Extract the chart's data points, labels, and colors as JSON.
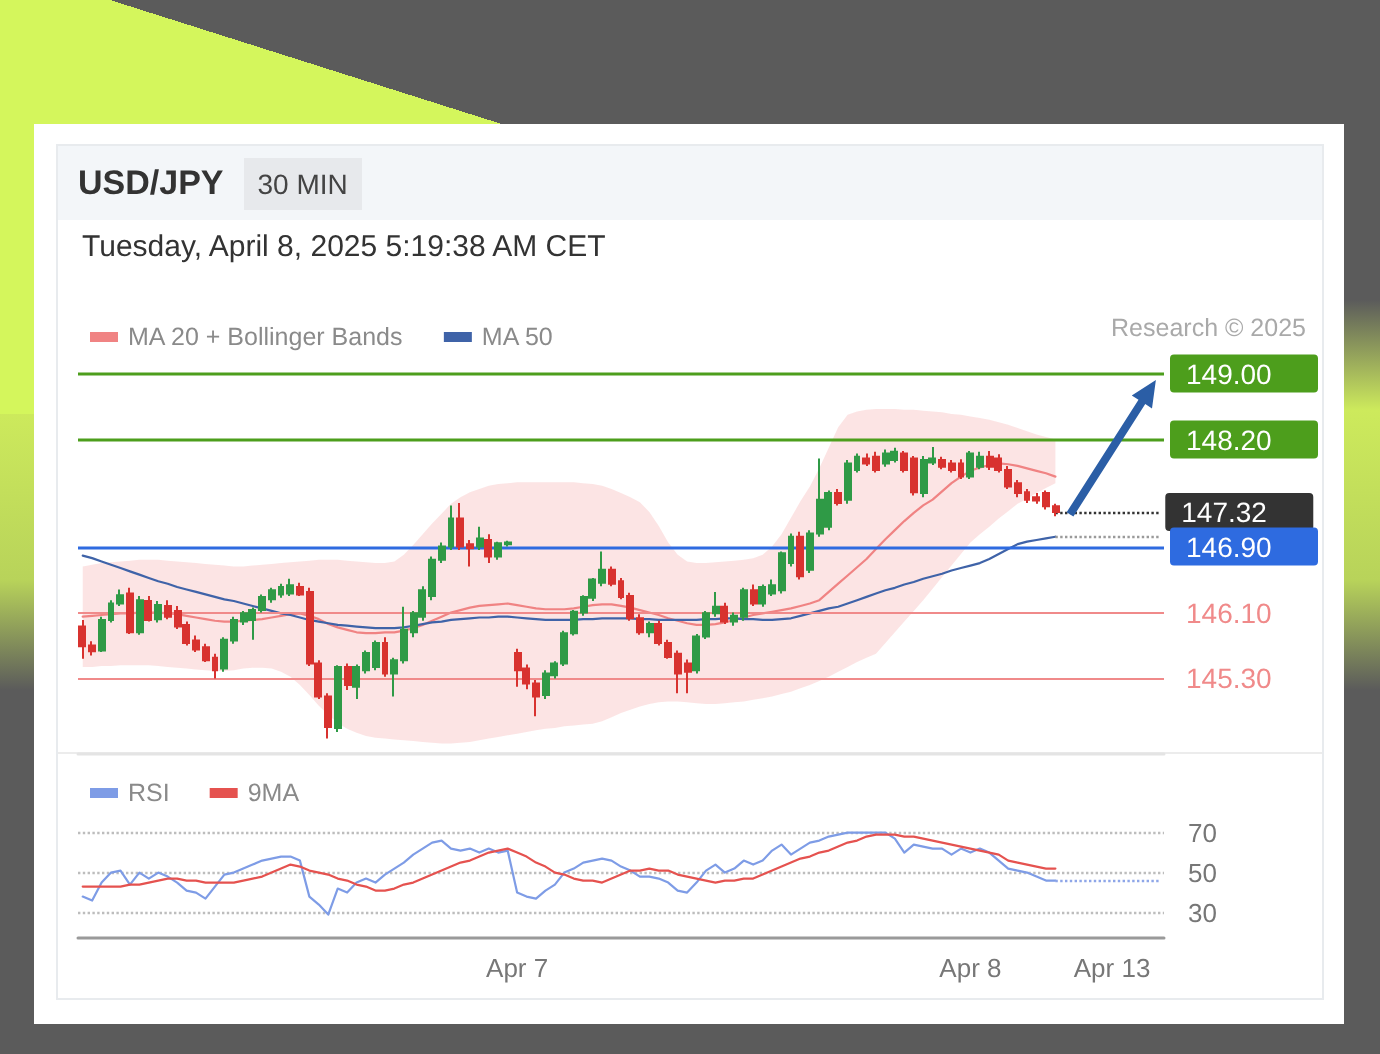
{
  "chart_data": [
    {
      "type": "candlestick",
      "title": "USD/JPY",
      "subtitle": "Tuesday, April 8, 2025 5:19:38 AM CET",
      "annotations": [
        "30 MIN",
        "Research © 2025"
      ],
      "categories": [
        null,
        null,
        null,
        null,
        null,
        null,
        null,
        null,
        null,
        null,
        null,
        null,
        null,
        null,
        null,
        null,
        null,
        null,
        null,
        null,
        null,
        null,
        null,
        null,
        null,
        null,
        null,
        null,
        null,
        null,
        null,
        null,
        null,
        null,
        null,
        null,
        null,
        null,
        null,
        null,
        null,
        null,
        null,
        null,
        null,
        null,
        "Apr 7",
        null,
        null,
        null,
        null,
        null,
        null,
        null,
        null,
        null,
        null,
        null,
        null,
        null,
        null,
        null,
        null,
        null,
        null,
        null,
        null,
        null,
        null,
        null,
        null,
        null,
        null,
        null,
        null,
        null,
        null,
        null,
        null,
        null,
        null,
        null,
        null,
        null,
        null,
        null,
        null,
        null,
        null,
        null,
        null,
        null,
        null,
        null,
        "Apr 8",
        null,
        null,
        null,
        null,
        null,
        null,
        null,
        null,
        null,
        null,
        null,
        null,
        null,
        null,
        "Apr 13",
        null,
        null,
        null,
        null,
        null
      ],
      "ohlc": [
        [
          145.93,
          146.01,
          145.54,
          145.69
        ],
        [
          145.7,
          145.75,
          145.58,
          145.63
        ],
        [
          145.64,
          146.05,
          145.62,
          146.01
        ],
        [
          146.01,
          146.25,
          145.98,
          146.21
        ],
        [
          146.21,
          146.38,
          146.18,
          146.31
        ],
        [
          146.33,
          146.4,
          145.84,
          145.86
        ],
        [
          145.86,
          146.3,
          145.83,
          146.25
        ],
        [
          146.24,
          146.3,
          145.99,
          146.01
        ],
        [
          146.02,
          146.24,
          145.98,
          146.19
        ],
        [
          146.18,
          146.25,
          146.02,
          146.05
        ],
        [
          146.12,
          146.18,
          145.9,
          145.93
        ],
        [
          145.95,
          145.99,
          145.7,
          145.73
        ],
        [
          145.76,
          145.82,
          145.62,
          145.65
        ],
        [
          145.68,
          145.72,
          145.5,
          145.52
        ],
        [
          145.55,
          145.6,
          145.3,
          145.4
        ],
        [
          145.42,
          145.8,
          145.38,
          145.77
        ],
        [
          145.76,
          146.05,
          145.72,
          146.01
        ],
        [
          145.99,
          146.12,
          145.95,
          146.09
        ],
        [
          146.01,
          146.16,
          145.77,
          146.13
        ],
        [
          146.13,
          146.32,
          146.1,
          146.29
        ],
        [
          146.26,
          146.4,
          146.22,
          146.37
        ],
        [
          146.32,
          146.45,
          146.28,
          146.41
        ],
        [
          146.33,
          146.51,
          146.3,
          146.43
        ],
        [
          146.41,
          146.46,
          146.3,
          146.32
        ],
        [
          146.35,
          146.4,
          145.45,
          145.48
        ],
        [
          145.48,
          145.52,
          145.05,
          145.08
        ],
        [
          145.08,
          145.12,
          144.57,
          144.71
        ],
        [
          144.7,
          145.46,
          144.65,
          145.44
        ],
        [
          145.44,
          145.48,
          145.16,
          145.22
        ],
        [
          145.2,
          145.47,
          145.05,
          145.44
        ],
        [
          145.4,
          145.64,
          145.36,
          145.61
        ],
        [
          145.44,
          145.76,
          145.4,
          145.73
        ],
        [
          145.73,
          145.8,
          145.32,
          145.36
        ],
        [
          145.36,
          145.55,
          145.08,
          145.52
        ],
        [
          145.52,
          146.17,
          145.48,
          145.89
        ],
        [
          145.86,
          146.12,
          145.8,
          146.09
        ],
        [
          146.05,
          146.42,
          146.0,
          146.37
        ],
        [
          146.3,
          146.78,
          146.25,
          146.74
        ],
        [
          146.74,
          146.95,
          146.7,
          146.9
        ],
        [
          146.9,
          147.4,
          146.86,
          147.24
        ],
        [
          147.24,
          147.43,
          146.86,
          146.9
        ],
        [
          146.93,
          146.98,
          146.66,
          146.88
        ],
        [
          146.9,
          147.14,
          146.86,
          147.0
        ],
        [
          146.98,
          147.05,
          146.7,
          146.78
        ],
        [
          146.78,
          146.96,
          146.74,
          146.94
        ],
        [
          146.93,
          146.97,
          146.9,
          146.95
        ],
        [
          145.61,
          145.66,
          145.2,
          145.4
        ],
        [
          145.42,
          145.47,
          145.17,
          145.24
        ],
        [
          145.24,
          145.28,
          144.84,
          145.08
        ],
        [
          145.1,
          145.4,
          145.05,
          145.36
        ],
        [
          145.34,
          145.51,
          145.3,
          145.48
        ],
        [
          145.48,
          145.88,
          145.45,
          145.85
        ],
        [
          145.85,
          146.13,
          145.82,
          146.11
        ],
        [
          146.1,
          146.31,
          146.06,
          146.29
        ],
        [
          146.28,
          146.52,
          146.24,
          146.5
        ],
        [
          146.46,
          146.84,
          146.42,
          146.62
        ],
        [
          146.62,
          146.66,
          146.42,
          146.45
        ],
        [
          146.48,
          146.52,
          146.26,
          146.29
        ],
        [
          146.3,
          146.34,
          146.0,
          146.03
        ],
        [
          146.03,
          146.08,
          145.83,
          145.86
        ],
        [
          145.86,
          145.99,
          145.8,
          145.96
        ],
        [
          145.96,
          146.0,
          145.7,
          145.73
        ],
        [
          145.73,
          145.77,
          145.54,
          145.56
        ],
        [
          145.6,
          145.64,
          145.12,
          145.36
        ],
        [
          145.48,
          145.53,
          145.12,
          145.38
        ],
        [
          145.4,
          145.84,
          145.36,
          145.81
        ],
        [
          145.81,
          146.12,
          145.78,
          146.09
        ],
        [
          146.09,
          146.35,
          146.05,
          146.17
        ],
        [
          146.17,
          146.22,
          145.96,
          145.99
        ],
        [
          145.99,
          146.1,
          145.94,
          146.06
        ],
        [
          146.05,
          146.4,
          146.0,
          146.37
        ],
        [
          146.37,
          146.44,
          146.18,
          146.21
        ],
        [
          146.21,
          146.44,
          146.17,
          146.41
        ],
        [
          146.33,
          146.5,
          146.3,
          146.43
        ],
        [
          146.37,
          146.84,
          146.33,
          146.82
        ],
        [
          146.7,
          147.06,
          146.66,
          147.02
        ],
        [
          147.02,
          147.08,
          146.5,
          146.54
        ],
        [
          146.62,
          147.1,
          146.58,
          147.06
        ],
        [
          147.06,
          147.97,
          147.02,
          147.47
        ],
        [
          147.14,
          147.58,
          147.1,
          147.55
        ],
        [
          147.55,
          147.6,
          147.4,
          147.43
        ],
        [
          147.47,
          147.95,
          147.42,
          147.91
        ],
        [
          147.83,
          148.03,
          147.8,
          147.99
        ],
        [
          147.97,
          148.03,
          147.88,
          147.91
        ],
        [
          147.99,
          148.05,
          147.8,
          147.83
        ],
        [
          147.91,
          148.08,
          147.87,
          148.03
        ],
        [
          147.95,
          148.1,
          147.92,
          148.05
        ],
        [
          148.03,
          148.06,
          147.8,
          147.83
        ],
        [
          147.97,
          148.0,
          147.52,
          147.56
        ],
        [
          147.55,
          148.0,
          147.5,
          147.95
        ],
        [
          147.92,
          148.11,
          147.89,
          147.97
        ],
        [
          147.95,
          147.99,
          147.84,
          147.87
        ],
        [
          147.91,
          147.95,
          147.8,
          147.83
        ],
        [
          147.91,
          147.96,
          147.72,
          147.75
        ],
        [
          147.75,
          148.06,
          147.72,
          148.03
        ],
        [
          147.87,
          148.05,
          147.84,
          147.99
        ],
        [
          147.99,
          148.06,
          147.83,
          147.87
        ],
        [
          147.97,
          148.02,
          147.8,
          147.83
        ],
        [
          147.83,
          147.88,
          147.6,
          147.63
        ],
        [
          147.67,
          147.71,
          147.5,
          147.55
        ],
        [
          147.56,
          147.6,
          147.43,
          147.47
        ],
        [
          147.5,
          147.55,
          147.42,
          147.46
        ],
        [
          147.55,
          147.58,
          147.35,
          147.39
        ],
        [
          147.39,
          147.42,
          147.27,
          147.32
        ],
        null,
        null,
        null,
        null,
        null,
        null,
        null,
        null,
        null,
        null,
        null
      ],
      "colors": [
        "#d8322f",
        "#d8322f",
        "#2f9a46",
        "#2f9a46",
        "#2f9a46",
        "#d8322f",
        "#2f9a46",
        "#d8322f",
        "#2f9a46",
        "#d8322f",
        "#d8322f",
        "#d8322f",
        "#d8322f",
        "#d8322f",
        "#d8322f",
        "#2f9a46",
        "#2f9a46",
        "#2f9a46",
        "#2f9a46",
        "#2f9a46",
        "#2f9a46",
        "#2f9a46",
        "#2f9a46",
        "#d8322f",
        "#d8322f",
        "#d8322f",
        "#d8322f",
        "#2f9a46",
        "#d8322f",
        "#2f9a46",
        "#2f9a46",
        "#2f9a46",
        "#d8322f",
        "#2f9a46",
        "#2f9a46",
        "#2f9a46",
        "#2f9a46",
        "#2f9a46",
        "#2f9a46",
        "#2f9a46",
        "#d8322f",
        "#d8322f",
        "#2f9a46",
        "#d8322f",
        "#2f9a46",
        "#2f9a46",
        "#d8322f",
        "#d8322f",
        "#d8322f",
        "#2f9a46",
        "#2f9a46",
        "#2f9a46",
        "#2f9a46",
        "#2f9a46",
        "#2f9a46",
        "#2f9a46",
        "#d8322f",
        "#d8322f",
        "#d8322f",
        "#d8322f",
        "#2f9a46",
        "#d8322f",
        "#d8322f",
        "#d8322f",
        "#d8322f",
        "#2f9a46",
        "#2f9a46",
        "#2f9a46",
        "#d8322f",
        "#2f9a46",
        "#2f9a46",
        "#d8322f",
        "#2f9a46",
        "#2f9a46",
        "#2f9a46",
        "#2f9a46",
        "#d8322f",
        "#2f9a46",
        "#2f9a46",
        "#2f9a46",
        "#d8322f",
        "#2f9a46",
        "#2f9a46",
        "#d8322f",
        "#d8322f",
        "#2f9a46",
        "#2f9a46",
        "#d8322f",
        "#d8322f",
        "#2f9a46",
        "#2f9a46",
        "#d8322f",
        "#d8322f",
        "#d8322f",
        "#2f9a46",
        "#2f9a46",
        "#d8322f",
        "#d8322f",
        "#d8322f",
        "#d8322f",
        "#d8322f",
        "#d8322f",
        "#d8322f",
        "#d8322f",
        null,
        null,
        null,
        null,
        null,
        null,
        null,
        null,
        null,
        null,
        null
      ],
      "series": [
        {
          "name": "MA 20 + Bollinger Bands",
          "type": "line",
          "color": "#f08383",
          "values": [
            146.05,
            146.06,
            146.07,
            146.08,
            146.09,
            146.09,
            146.1,
            146.1,
            146.1,
            146.09,
            146.08,
            146.06,
            146.04,
            146.02,
            146.0,
            145.99,
            145.99,
            146.0,
            146.01,
            146.02,
            146.04,
            146.06,
            146.08,
            146.09,
            146.06,
            146.02,
            145.96,
            145.92,
            145.89,
            145.86,
            145.85,
            145.85,
            145.86,
            145.86,
            145.88,
            145.91,
            145.95,
            146.0,
            146.05,
            146.1,
            146.13,
            146.16,
            146.18,
            146.19,
            146.2,
            146.21,
            146.19,
            146.17,
            146.15,
            146.14,
            146.14,
            146.14,
            146.15,
            146.17,
            146.19,
            146.2,
            146.2,
            146.18,
            146.16,
            146.13,
            146.1,
            146.07,
            146.03,
            146.0,
            145.97,
            145.95,
            145.95,
            145.96,
            145.98,
            146.01,
            146.04,
            146.07,
            146.09,
            146.11,
            146.13,
            146.15,
            146.18,
            146.21,
            146.25,
            146.35,
            146.45,
            146.55,
            146.65,
            146.75,
            146.87,
            146.99,
            147.1,
            147.21,
            147.31,
            147.4,
            147.47,
            147.57,
            147.67,
            147.75,
            147.82,
            147.86,
            147.89,
            147.91,
            147.9,
            147.88,
            147.85,
            147.82,
            147.79,
            147.75,
            null,
            null,
            null,
            null,
            null,
            null,
            null,
            null,
            null,
            null,
            null
          ],
          "upper": [
            146.66,
            146.68,
            146.7,
            146.71,
            146.72,
            146.73,
            146.74,
            146.74,
            146.74,
            146.73,
            146.72,
            146.71,
            146.7,
            146.69,
            146.68,
            146.67,
            146.66,
            146.66,
            146.67,
            146.68,
            146.69,
            146.7,
            146.71,
            146.72,
            146.73,
            146.74,
            146.74,
            146.74,
            146.73,
            146.72,
            146.71,
            146.7,
            146.7,
            146.72,
            146.8,
            146.92,
            147.05,
            147.18,
            147.3,
            147.42,
            147.5,
            147.56,
            147.6,
            147.64,
            147.66,
            147.67,
            147.68,
            147.68,
            147.68,
            147.68,
            147.68,
            147.68,
            147.68,
            147.67,
            147.66,
            147.64,
            147.6,
            147.55,
            147.5,
            147.44,
            147.32,
            147.15,
            146.95,
            146.8,
            146.72,
            146.7,
            146.7,
            146.71,
            146.72,
            146.73,
            146.74,
            146.76,
            146.8,
            146.9,
            147.05,
            147.25,
            147.45,
            147.63,
            147.85,
            148.1,
            148.35,
            148.5,
            148.54,
            148.56,
            148.57,
            148.57,
            148.57,
            148.56,
            148.56,
            148.55,
            148.54,
            148.53,
            148.51,
            148.5,
            148.48,
            148.46,
            148.44,
            148.41,
            148.38,
            148.34,
            148.3,
            148.26,
            148.23,
            148.2,
            null,
            null,
            null,
            null,
            null,
            null,
            null,
            null,
            null,
            null,
            null
          ],
          "lower": [
            145.44,
            145.44,
            145.45,
            145.45,
            145.46,
            145.46,
            145.46,
            145.46,
            145.45,
            145.44,
            145.43,
            145.42,
            145.41,
            145.4,
            145.39,
            145.39,
            145.4,
            145.42,
            145.43,
            145.43,
            145.42,
            145.38,
            145.32,
            145.22,
            145.1,
            144.97,
            144.86,
            144.76,
            144.69,
            144.64,
            144.6,
            144.58,
            144.57,
            144.56,
            144.55,
            144.54,
            144.53,
            144.52,
            144.51,
            144.51,
            144.52,
            144.53,
            144.55,
            144.57,
            144.59,
            144.61,
            144.63,
            144.65,
            144.67,
            144.69,
            144.7,
            144.72,
            144.73,
            144.74,
            144.75,
            144.78,
            144.83,
            144.88,
            144.92,
            144.96,
            144.99,
            145.01,
            145.02,
            145.02,
            145.01,
            145.0,
            144.99,
            144.99,
            145.0,
            145.01,
            145.02,
            145.04,
            145.06,
            145.08,
            145.11,
            145.14,
            145.18,
            145.22,
            145.27,
            145.32,
            145.38,
            145.44,
            145.5,
            145.55,
            145.6,
            145.73,
            145.86,
            145.99,
            146.12,
            146.25,
            146.39,
            146.53,
            146.67,
            146.81,
            146.95,
            147.05,
            147.14,
            147.24,
            147.33,
            147.42,
            147.48,
            147.55,
            147.61,
            147.67,
            null,
            null,
            null,
            null,
            null,
            null,
            null,
            null,
            null,
            null,
            null
          ]
        },
        {
          "name": "MA 50",
          "type": "line",
          "color": "#3f63a8",
          "values": [
            146.79,
            146.76,
            146.72,
            146.68,
            146.64,
            146.6,
            146.56,
            146.52,
            146.48,
            146.45,
            146.41,
            146.38,
            146.35,
            146.32,
            146.29,
            146.26,
            146.24,
            146.21,
            146.18,
            146.15,
            146.12,
            146.09,
            146.07,
            146.04,
            146.01,
            145.99,
            145.97,
            145.95,
            145.94,
            145.93,
            145.92,
            145.91,
            145.91,
            145.91,
            145.92,
            145.94,
            145.96,
            145.98,
            145.99,
            146.01,
            146.02,
            146.03,
            146.04,
            146.04,
            146.05,
            146.05,
            146.04,
            146.03,
            146.02,
            146.01,
            146.01,
            146.01,
            146.01,
            146.02,
            146.02,
            146.03,
            146.03,
            146.03,
            146.03,
            146.02,
            146.02,
            146.01,
            146.01,
            146.01,
            146.01,
            146.01,
            146.02,
            146.02,
            146.03,
            146.03,
            146.02,
            146.02,
            146.01,
            146.01,
            146.02,
            146.03,
            146.06,
            146.09,
            146.12,
            146.15,
            146.17,
            146.21,
            146.25,
            146.29,
            146.33,
            146.37,
            146.4,
            146.44,
            146.47,
            146.51,
            146.54,
            146.57,
            146.61,
            146.64,
            146.67,
            146.7,
            146.75,
            146.81,
            146.87,
            146.93,
            146.96,
            146.98,
            147.0,
            147.02,
            null,
            null,
            null,
            null,
            null,
            null,
            null,
            null,
            null,
            null,
            null
          ]
        }
      ],
      "ylim": [
        144.4,
        149.0
      ],
      "ref_lines": [
        {
          "axis": "y",
          "value": 149.0,
          "label": "149.00",
          "color": "#4d9e1c"
        },
        {
          "axis": "y",
          "value": 148.2,
          "label": "148.20",
          "color": "#4d9e1c"
        },
        {
          "axis": "y",
          "value": 147.32,
          "label": "147.32",
          "color": "#333333",
          "line_style": "dotted"
        },
        {
          "axis": "y",
          "value": 147.02,
          "color": "#9a9a9a",
          "line_style": "dotted"
        },
        {
          "axis": "y",
          "value": 146.9,
          "label": "146.90",
          "color": "#2e6be0"
        },
        {
          "axis": "y",
          "value": 146.1,
          "label": "146.10",
          "color": "#f08a8a"
        },
        {
          "axis": "y",
          "value": 145.3,
          "label": "145.30",
          "color": "#f08a8a"
        }
      ],
      "legend": "top left",
      "tick_labels": false
    },
    {
      "type": "line",
      "categories": [
        null,
        null,
        null,
        null,
        null,
        null,
        null,
        null,
        null,
        null,
        null,
        null,
        null,
        null,
        null,
        null,
        null,
        null,
        null,
        null,
        null,
        null,
        null,
        null,
        null,
        null,
        null,
        null,
        null,
        null,
        null,
        null,
        null,
        null,
        null,
        null,
        null,
        null,
        null,
        null,
        null,
        null,
        null,
        null,
        null,
        null,
        "Apr 7",
        null,
        null,
        null,
        null,
        null,
        null,
        null,
        null,
        null,
        null,
        null,
        null,
        null,
        null,
        null,
        null,
        null,
        null,
        null,
        null,
        null,
        null,
        null,
        null,
        null,
        null,
        null,
        null,
        null,
        null,
        null,
        null,
        null,
        null,
        null,
        null,
        null,
        null,
        null,
        null,
        null,
        null,
        null,
        null,
        null,
        null,
        null,
        "Apr 8",
        null,
        null,
        null,
        null,
        null,
        null,
        null,
        null,
        null,
        null,
        null,
        null,
        null,
        null,
        "Apr 13",
        null,
        null,
        null,
        null,
        null
      ],
      "series": [
        {
          "name": "RSI",
          "color": "#7e9ce6",
          "values": [
            38,
            36,
            45,
            50,
            51,
            44,
            50,
            47,
            50,
            48,
            45,
            41,
            40,
            37,
            43,
            49,
            50,
            52,
            54,
            56,
            57,
            58,
            58,
            56,
            38,
            34,
            29,
            42,
            40,
            45,
            47,
            45,
            49,
            52,
            55,
            59,
            62,
            65,
            66,
            62,
            61,
            62,
            60,
            62,
            60,
            61,
            40,
            38,
            37,
            41,
            44,
            50,
            52,
            55,
            56,
            57,
            56,
            53,
            51,
            48,
            48,
            47,
            45,
            41,
            40,
            45,
            51,
            54,
            50,
            52,
            56,
            54,
            56,
            61,
            64,
            59,
            62,
            65,
            66,
            68,
            69,
            70,
            70,
            70,
            70,
            70,
            67,
            60,
            64,
            63,
            62,
            62,
            59,
            62,
            60,
            62,
            60,
            56,
            52,
            51,
            50,
            48,
            46,
            46,
            null,
            null,
            null,
            null,
            null,
            null,
            null,
            null,
            null,
            null,
            null
          ]
        },
        {
          "name": "9MA",
          "color": "#e5524f",
          "values": [
            43,
            43,
            43,
            43,
            43,
            44,
            44,
            45,
            46,
            47,
            47,
            46,
            46,
            45,
            45,
            45,
            45,
            46,
            47,
            48,
            50,
            52,
            54,
            53,
            51,
            50,
            49,
            47,
            46,
            44,
            43,
            41,
            41,
            42,
            44,
            45,
            47,
            49,
            51,
            53,
            55,
            56,
            58,
            60,
            61,
            62,
            60,
            58,
            55,
            53,
            50,
            49,
            47,
            46,
            46,
            45,
            47,
            49,
            51,
            51,
            52,
            51,
            51,
            49,
            48,
            47,
            46,
            45,
            46,
            46,
            47,
            47,
            49,
            51,
            53,
            55,
            57,
            58,
            60,
            61,
            63,
            65,
            66,
            68,
            69,
            69,
            69,
            68,
            68,
            67,
            66,
            65,
            64,
            63,
            62,
            61,
            60,
            59,
            56,
            55,
            54,
            53,
            52,
            52,
            null,
            null,
            null,
            null,
            null,
            null,
            null,
            null,
            null,
            null,
            null
          ]
        }
      ],
      "ylim": [
        18,
        70
      ],
      "yticks": [
        30,
        50,
        70
      ],
      "grid": "y",
      "legend": "top left",
      "ref_lines": [
        {
          "axis": "y",
          "value": 46,
          "color": "#8ea6e8",
          "line_style": "dotted"
        }
      ]
    }
  ]
}
